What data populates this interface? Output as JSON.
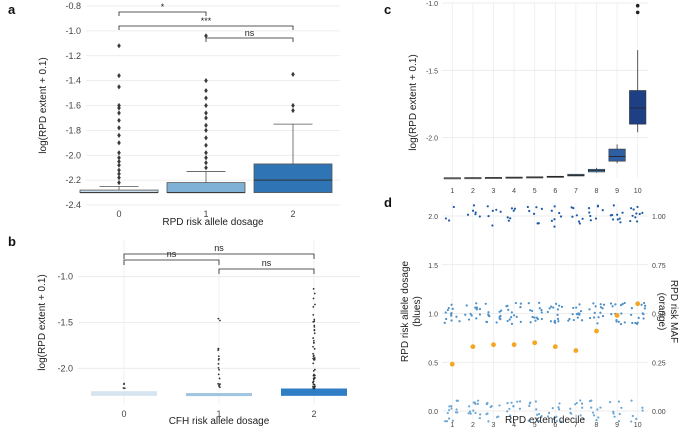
{
  "panels": {
    "a": "a",
    "b": "b",
    "c": "c",
    "d": "d"
  },
  "chart_data": [
    {
      "id": "a",
      "type": "box",
      "xlabel": "RPD risk allele dosage",
      "ylabel": "log(RPD extent + 0.1)",
      "categories": [
        "0",
        "1",
        "2"
      ],
      "yticks": [
        "-0.8",
        "-1.0",
        "-1.2",
        "-1.4",
        "-1.6",
        "-1.8",
        "-2.0",
        "-2.2",
        "-2.4"
      ],
      "ylim": [
        -2.4,
        -0.8
      ],
      "colors": [
        "#c8dcec",
        "#7fb1d6",
        "#2f75b5"
      ],
      "boxes": [
        {
          "q1": -2.3,
          "median": -2.3,
          "q3": -2.28,
          "whislo": -2.3,
          "whishi": -2.25,
          "fliers": [
            -1.12,
            -1.36,
            -1.45,
            -1.6,
            -1.62,
            -1.66,
            -1.72,
            -1.78,
            -1.84,
            -1.9,
            -1.98,
            -2.02,
            -2.05,
            -2.08,
            -2.12,
            -2.15,
            -2.18,
            -2.22
          ]
        },
        {
          "q1": -2.3,
          "median": -2.3,
          "q3": -2.22,
          "whislo": -2.3,
          "whishi": -2.13,
          "fliers": [
            -1.04,
            -1.4,
            -1.48,
            -1.54,
            -1.6,
            -1.66,
            -1.7,
            -1.76,
            -1.8,
            -1.86,
            -1.92,
            -1.98,
            -2.02,
            -2.06,
            -2.1
          ]
        },
        {
          "q1": -2.3,
          "median": -2.2,
          "q3": -2.07,
          "whislo": -2.3,
          "whishi": -1.75,
          "fliers": [
            -1.35,
            -1.6,
            -1.64
          ]
        }
      ],
      "comparisons": [
        {
          "from": 0,
          "to": 1,
          "label": "*"
        },
        {
          "from": 0,
          "to": 2,
          "label": "***"
        },
        {
          "from": 1,
          "to": 2,
          "label": "ns"
        }
      ]
    },
    {
      "id": "b",
      "type": "box",
      "xlabel": "CFH risk allele dosage",
      "ylabel": "log(RPD extent + 0.1)",
      "categories": [
        "0",
        "1",
        "2"
      ],
      "yticks": [
        "-1.0",
        "-1.5",
        "-2.0"
      ],
      "ylim": [
        -2.4,
        -0.6
      ],
      "colors": [
        "#d6e4f0",
        "#9fc4e0",
        "#2f7dc4"
      ],
      "boxes": [
        {
          "q1": -2.3,
          "median": -2.29,
          "q3": -2.25,
          "whislo": -2.3,
          "whishi": -2.25
        },
        {
          "q1": -2.3,
          "median": -2.29,
          "q3": -2.27,
          "whislo": -2.3,
          "whishi": -2.26
        },
        {
          "q1": -2.3,
          "median": -2.28,
          "q3": -2.22,
          "whislo": -2.3,
          "whishi": -2.2
        }
      ],
      "comparisons": [
        {
          "from": 0,
          "to": 1,
          "label": "ns"
        },
        {
          "from": 0,
          "to": 2,
          "label": "ns"
        },
        {
          "from": 1,
          "to": 2,
          "label": "ns"
        }
      ]
    },
    {
      "id": "c",
      "type": "box",
      "xlabel": "",
      "ylabel": "log(RPD extent + 0.1)",
      "categories": [
        "1",
        "2",
        "3",
        "4",
        "5",
        "6",
        "7",
        "8",
        "9",
        "10"
      ],
      "yticks": [
        "-1.0",
        "-1.5",
        "-2.0"
      ],
      "ylim": [
        -2.3,
        -1.0
      ],
      "colors": [
        "#dbe8f4",
        "#d3e3f1",
        "#c6dbef",
        "#b3d1eb",
        "#9cc4e4",
        "#7fb2da",
        "#5f9dcf",
        "#4682bd",
        "#2f5fa3",
        "#1e3f84"
      ],
      "boxes": [
        {
          "q1": -2.302,
          "median": -2.3,
          "q3": -2.298,
          "whislo": -2.302,
          "whishi": -2.298
        },
        {
          "q1": -2.301,
          "median": -2.299,
          "q3": -2.297,
          "whislo": -2.301,
          "whishi": -2.297
        },
        {
          "q1": -2.3,
          "median": -2.298,
          "q3": -2.296,
          "whislo": -2.3,
          "whishi": -2.296
        },
        {
          "q1": -2.298,
          "median": -2.296,
          "q3": -2.293,
          "whislo": -2.298,
          "whishi": -2.293
        },
        {
          "q1": -2.296,
          "median": -2.294,
          "q3": -2.291,
          "whislo": -2.296,
          "whishi": -2.291
        },
        {
          "q1": -2.293,
          "median": -2.29,
          "q3": -2.287,
          "whislo": -2.293,
          "whishi": -2.287
        },
        {
          "q1": -2.285,
          "median": -2.28,
          "q3": -2.272,
          "whislo": -2.285,
          "whishi": -2.27
        },
        {
          "q1": -2.255,
          "median": -2.245,
          "q3": -2.235,
          "whislo": -2.26,
          "whishi": -2.225
        },
        {
          "q1": -2.175,
          "median": -2.14,
          "q3": -2.085,
          "whislo": -2.19,
          "whishi": -2.05
        },
        {
          "q1": -1.9,
          "median": -1.78,
          "q3": -1.65,
          "whislo": -1.96,
          "whishi": -1.35
        }
      ],
      "fliers": [
        {
          "box": 9,
          "y": -1.02
        },
        {
          "box": 9,
          "y": -1.07
        }
      ]
    },
    {
      "id": "d",
      "type": "scatter",
      "xlabel": "RPD extent decile",
      "ylabel": "RPD risk allele dosage\n(blues)",
      "ylabel_right": "RPD risk MAF\n(orange)",
      "categories": [
        "1",
        "2",
        "3",
        "4",
        "5",
        "6",
        "7",
        "8",
        "9",
        "10"
      ],
      "yticks_left": [
        "2.0",
        "1.5",
        "1.0",
        "0.5",
        "0.0"
      ],
      "yticks_right": [
        "1.00",
        "0.75",
        "0.50",
        "0.25",
        "0.00"
      ],
      "ylim": [
        -0.15,
        2.15
      ],
      "dosage_counts": {
        "0": [
          14,
          13,
          11,
          11,
          11,
          10,
          10,
          9,
          8,
          6
        ],
        "1": [
          13,
          13,
          14,
          14,
          14,
          15,
          15,
          14,
          14,
          14
        ],
        "2": [
          3,
          6,
          6,
          6,
          7,
          7,
          7,
          8,
          9,
          10
        ]
      },
      "maf": [
        0.24,
        0.33,
        0.34,
        0.34,
        0.35,
        0.33,
        0.31,
        0.41,
        0.49,
        0.55
      ],
      "maf_color": "#f4a621"
    }
  ]
}
